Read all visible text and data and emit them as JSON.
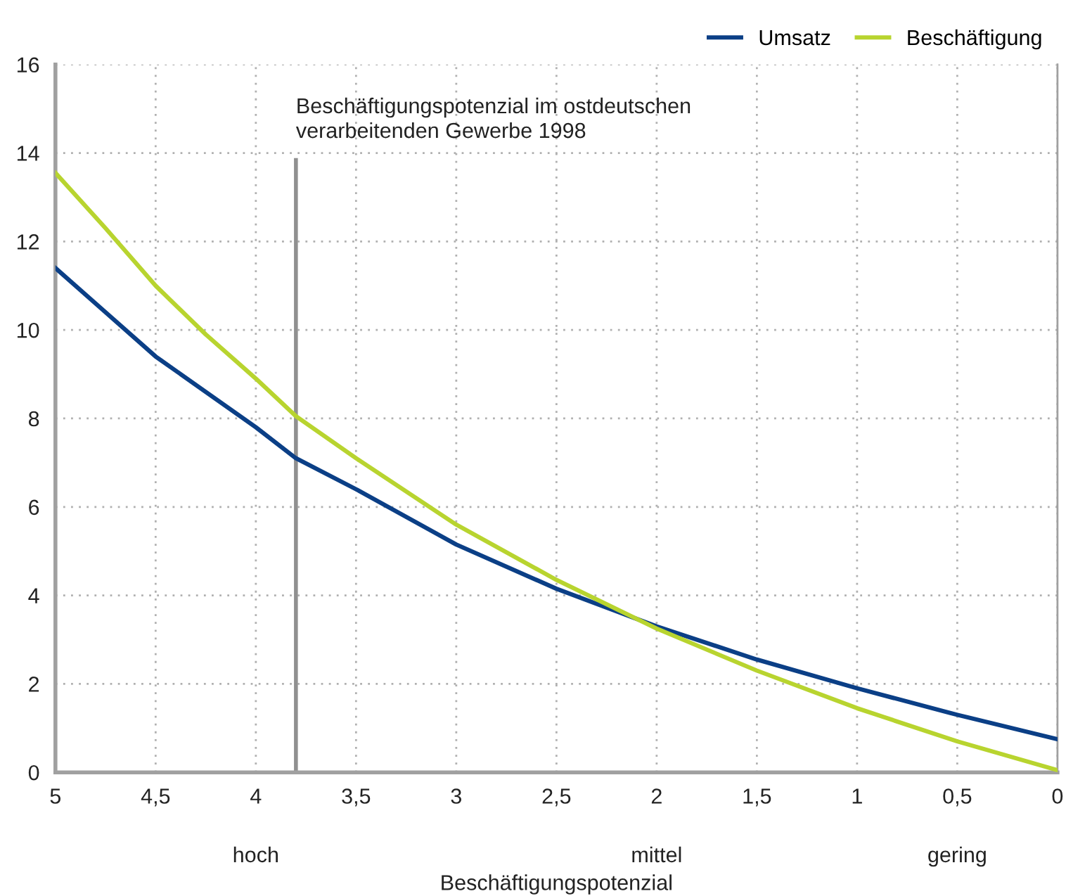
{
  "chart_data": {
    "type": "line",
    "xlabel": "Beschäftigungspotenzial",
    "x": [
      5,
      4.75,
      4.5,
      4.25,
      4,
      3.8,
      3.5,
      3,
      2.5,
      2,
      1.5,
      1,
      0.5,
      0
    ],
    "series": [
      {
        "name": "Umsatz",
        "color": "#0b3f86",
        "values": [
          11.4,
          10.4,
          9.4,
          8.6,
          7.8,
          7.1,
          6.4,
          5.15,
          4.15,
          3.3,
          2.55,
          1.9,
          1.3,
          0.75
        ]
      },
      {
        "name": "Beschäftigung",
        "color": "#b8d42f",
        "values": [
          13.55,
          12.3,
          11.0,
          9.9,
          8.9,
          8.05,
          7.1,
          5.6,
          4.35,
          3.25,
          2.3,
          1.45,
          0.7,
          0.05
        ]
      }
    ],
    "xlim": [
      5,
      0
    ],
    "ylim": [
      0,
      16
    ],
    "xticks": [
      5,
      {
        "value": 4.5,
        "label": "4,5"
      },
      4,
      {
        "value": 3.5,
        "label": "3,5"
      },
      3,
      {
        "value": 2.5,
        "label": "2,5"
      },
      2,
      {
        "value": 1.5,
        "label": "1,5"
      },
      1,
      {
        "value": 0.5,
        "label": "0,5"
      },
      0
    ],
    "yticks": [
      0,
      2,
      4,
      6,
      8,
      10,
      12,
      14,
      16
    ],
    "ref_lines": [
      {
        "axis": "x",
        "value": 3.8,
        "label": "Beschäftigungspotenzial im ostdeutschen\nverarbeitenden Gewerbe 1998",
        "color": "#909090"
      }
    ],
    "annotations": [
      "hoch",
      "mittel",
      "gering"
    ],
    "grid": true,
    "legend": "top right",
    "marker": "none",
    "line_style": "solid"
  }
}
